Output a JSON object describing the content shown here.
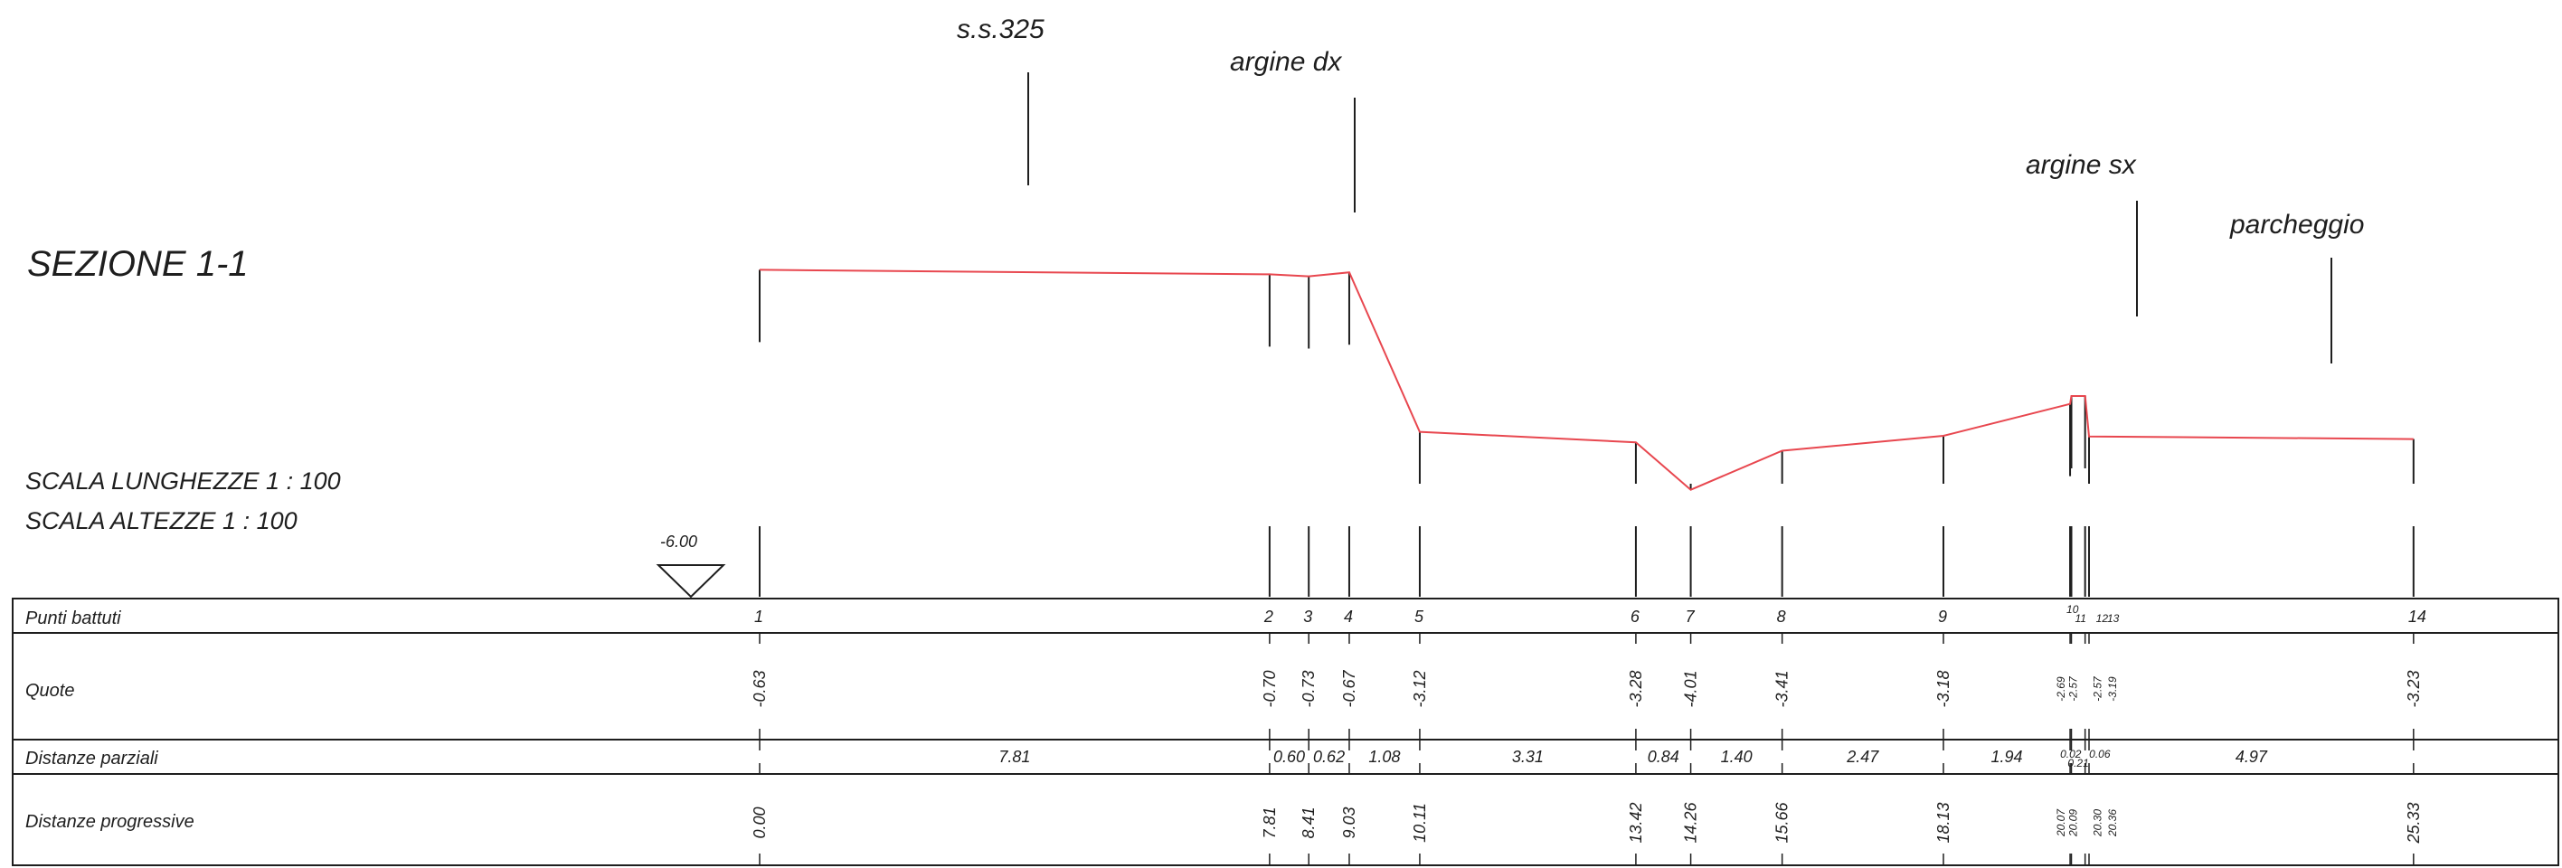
{
  "section_title": "SEZIONE 1-1",
  "scales": {
    "length": "SCALA LUNGHEZZE 1 : 100",
    "height": "SCALA ALTEZZE   1 : 100"
  },
  "datum": "-6.00",
  "features": {
    "road": "s.s.325",
    "right_bank": "argine dx",
    "left_bank": "argine sx",
    "parking": "parcheggio"
  },
  "table": {
    "row_labels": {
      "points": "Punti battuti",
      "elevations": "Quote",
      "partial": "Distanze parziali",
      "progressive": "Distanze progressive"
    }
  },
  "colors": {
    "profile": "#e8474f",
    "ink": "#1e1e1e"
  },
  "chart_data": {
    "type": "line",
    "points": [
      {
        "id": "1",
        "x": 0.0,
        "z": -0.63
      },
      {
        "id": "2",
        "x": 7.81,
        "z": -0.7
      },
      {
        "id": "3",
        "x": 8.41,
        "z": -0.73
      },
      {
        "id": "4",
        "x": 9.03,
        "z": -0.67
      },
      {
        "id": "5",
        "x": 10.11,
        "z": -3.12
      },
      {
        "id": "6",
        "x": 13.42,
        "z": -3.28
      },
      {
        "id": "7",
        "x": 14.26,
        "z": -4.01
      },
      {
        "id": "8",
        "x": 15.66,
        "z": -3.41
      },
      {
        "id": "9",
        "x": 18.13,
        "z": -3.18
      },
      {
        "id": "10",
        "x": 20.07,
        "z": -2.69
      },
      {
        "id": "11",
        "x": 20.09,
        "z": -2.57
      },
      {
        "id": "12",
        "x": 20.3,
        "z": -2.57
      },
      {
        "id": "13",
        "x": 20.36,
        "z": -3.19
      },
      {
        "id": "14",
        "x": 25.33,
        "z": -3.23
      }
    ],
    "partial_distances": [
      "7.81",
      "0.60",
      "0.62",
      "1.08",
      "3.31",
      "0.84",
      "1.40",
      "2.47",
      "1.94",
      "0.02",
      "0.21",
      "0.06",
      "4.97"
    ],
    "elevation_labels": [
      "-0.63",
      "-0.70",
      "-0.73",
      "-0.67",
      "-3.12",
      "-3.28",
      "-4.01",
      "-3.41",
      "-3.18",
      "-2.69",
      "-2.57",
      "-2.57",
      "-3.19",
      "-3.23"
    ],
    "progressive_labels": [
      "0.00",
      "7.81",
      "8.41",
      "9.03",
      "10.11",
      "13.42",
      "14.26",
      "15.66",
      "18.13",
      "20.07",
      "20.09",
      "20.30",
      "20.36",
      "25.33"
    ],
    "point_labels": [
      "1",
      "2",
      "3",
      "4",
      "5",
      "6",
      "7",
      "8",
      "9",
      "10",
      "11",
      "12",
      "13",
      "14"
    ]
  }
}
